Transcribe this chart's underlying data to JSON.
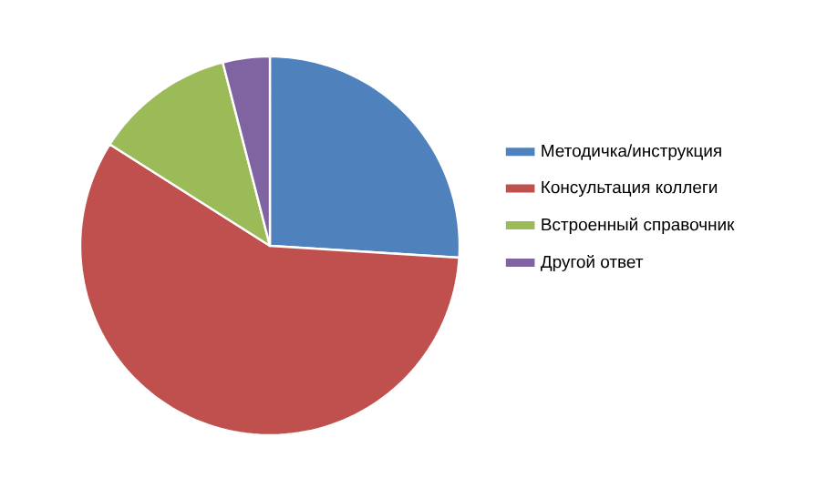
{
  "chart_data": {
    "type": "pie",
    "categories": [
      "Методичка/инструкция",
      "Консультация коллеги",
      "Встроенный справочник",
      "Другой ответ"
    ],
    "values": [
      26,
      58,
      12,
      4
    ],
    "colors": [
      "#4f81bd",
      "#c0504d",
      "#9bbb59",
      "#8064a2"
    ],
    "legend": "right"
  }
}
